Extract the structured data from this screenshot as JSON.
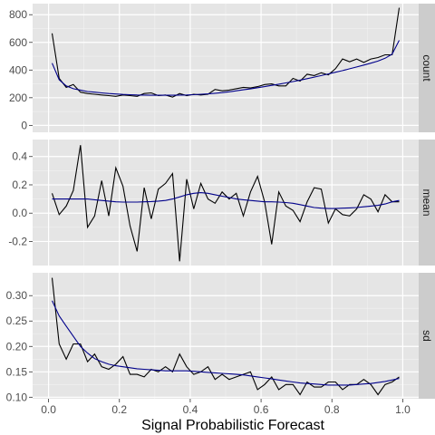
{
  "chart_data": {
    "type": "line",
    "xlabel": "Signal Probabilistic Forecast",
    "xlim": [
      -0.045,
      1.045
    ],
    "x_ticks": [
      0.0,
      0.2,
      0.4,
      0.6,
      0.8,
      1.0
    ],
    "x_tick_labels": [
      "0.0",
      "0.2",
      "0.4",
      "0.6",
      "0.8",
      "1.0"
    ],
    "grid": true,
    "colors": {
      "observed": "#000000",
      "smooth": "#00008b",
      "panel_bg": "#e5e5e5",
      "strip_bg": "#cccccc",
      "grid": "#ffffff"
    },
    "x": [
      0.01,
      0.03,
      0.05,
      0.07,
      0.09,
      0.11,
      0.13,
      0.15,
      0.17,
      0.19,
      0.21,
      0.23,
      0.25,
      0.27,
      0.29,
      0.31,
      0.33,
      0.35,
      0.37,
      0.39,
      0.41,
      0.43,
      0.45,
      0.47,
      0.49,
      0.51,
      0.53,
      0.55,
      0.57,
      0.59,
      0.61,
      0.63,
      0.65,
      0.67,
      0.69,
      0.71,
      0.73,
      0.75,
      0.77,
      0.79,
      0.81,
      0.83,
      0.85,
      0.87,
      0.89,
      0.91,
      0.93,
      0.95,
      0.97,
      0.99
    ],
    "panels": [
      {
        "name": "count",
        "ylim": [
          -50,
          880
        ],
        "y_ticks": [
          0,
          200,
          400,
          600,
          800
        ],
        "y_tick_labels": [
          "0",
          "200",
          "400",
          "600",
          "800"
        ],
        "observed": [
          665,
          340,
          275,
          295,
          240,
          230,
          225,
          220,
          215,
          210,
          220,
          215,
          210,
          230,
          235,
          215,
          220,
          205,
          230,
          215,
          225,
          220,
          225,
          260,
          250,
          255,
          265,
          275,
          270,
          280,
          295,
          300,
          285,
          285,
          340,
          320,
          370,
          360,
          380,
          365,
          410,
          480,
          460,
          480,
          455,
          480,
          490,
          510,
          510,
          850
        ],
        "smooth": [
          450,
          330,
          285,
          265,
          255,
          245,
          240,
          235,
          230,
          227,
          224,
          222,
          220,
          219,
          218,
          218,
          218,
          218,
          219,
          220,
          222,
          225,
          228,
          232,
          237,
          243,
          250,
          257,
          264,
          272,
          280,
          289,
          298,
          307,
          317,
          327,
          338,
          349,
          360,
          372,
          384,
          396,
          409,
          422,
          436,
          450,
          465,
          485,
          515,
          615
        ]
      },
      {
        "name": "mean",
        "ylim": [
          -0.37,
          0.52
        ],
        "y_ticks": [
          -0.2,
          0.0,
          0.2,
          0.4
        ],
        "y_tick_labels": [
          "-0.2",
          "0.0",
          "0.2",
          "0.4"
        ],
        "observed": [
          0.14,
          -0.01,
          0.05,
          0.16,
          0.48,
          -0.1,
          -0.02,
          0.23,
          -0.02,
          0.32,
          0.19,
          -0.09,
          -0.27,
          0.18,
          -0.04,
          0.17,
          0.21,
          0.28,
          -0.34,
          0.24,
          0.03,
          0.21,
          0.1,
          0.07,
          0.15,
          0.1,
          0.14,
          -0.02,
          0.15,
          0.26,
          0.08,
          -0.22,
          0.15,
          0.05,
          0.02,
          -0.06,
          0.08,
          0.18,
          0.17,
          -0.07,
          0.03,
          -0.01,
          -0.02,
          0.03,
          0.13,
          0.1,
          0.01,
          0.13,
          0.08,
          0.08
        ],
        "smooth": [
          0.1,
          0.1,
          0.1,
          0.1,
          0.1,
          0.1,
          0.095,
          0.09,
          0.085,
          0.08,
          0.078,
          0.078,
          0.078,
          0.08,
          0.082,
          0.085,
          0.09,
          0.1,
          0.115,
          0.13,
          0.14,
          0.145,
          0.14,
          0.13,
          0.12,
          0.11,
          0.1,
          0.095,
          0.09,
          0.085,
          0.08,
          0.08,
          0.078,
          0.075,
          0.07,
          0.06,
          0.05,
          0.04,
          0.035,
          0.033,
          0.033,
          0.035,
          0.037,
          0.04,
          0.045,
          0.05,
          0.055,
          0.065,
          0.08,
          0.09
        ]
      },
      {
        "name": "sd",
        "ylim": [
          0.097,
          0.345
        ],
        "y_ticks": [
          0.1,
          0.15,
          0.2,
          0.25,
          0.3
        ],
        "y_tick_labels": [
          "0.10",
          "0.15",
          "0.20",
          "0.25",
          "0.30"
        ],
        "observed": [
          0.335,
          0.205,
          0.175,
          0.205,
          0.205,
          0.17,
          0.185,
          0.16,
          0.155,
          0.165,
          0.18,
          0.145,
          0.145,
          0.14,
          0.155,
          0.15,
          0.16,
          0.15,
          0.185,
          0.16,
          0.145,
          0.15,
          0.16,
          0.135,
          0.145,
          0.135,
          0.14,
          0.145,
          0.15,
          0.115,
          0.125,
          0.14,
          0.115,
          0.125,
          0.125,
          0.105,
          0.13,
          0.12,
          0.12,
          0.13,
          0.13,
          0.115,
          0.125,
          0.125,
          0.135,
          0.125,
          0.105,
          0.125,
          0.13,
          0.14
        ],
        "smooth": [
          0.29,
          0.26,
          0.24,
          0.22,
          0.2,
          0.187,
          0.176,
          0.17,
          0.165,
          0.162,
          0.16,
          0.158,
          0.156,
          0.155,
          0.154,
          0.153,
          0.152,
          0.152,
          0.152,
          0.152,
          0.151,
          0.15,
          0.149,
          0.148,
          0.147,
          0.146,
          0.145,
          0.144,
          0.142,
          0.14,
          0.138,
          0.136,
          0.134,
          0.132,
          0.13,
          0.128,
          0.127,
          0.126,
          0.125,
          0.124,
          0.124,
          0.124,
          0.124,
          0.125,
          0.126,
          0.127,
          0.129,
          0.131,
          0.134,
          0.137
        ]
      }
    ]
  }
}
